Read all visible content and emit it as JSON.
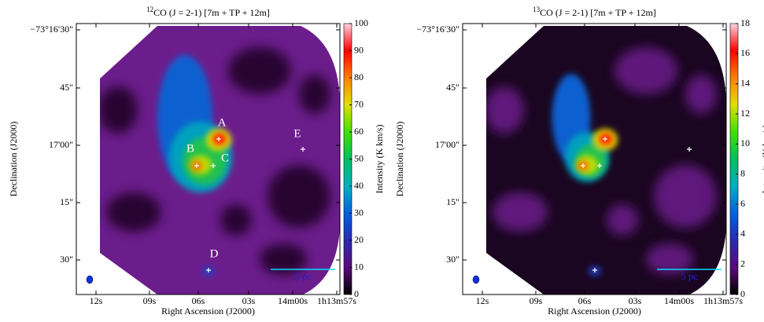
{
  "chart_data": [
    {
      "type": "map",
      "isotope": "12",
      "title": "CO (J = 2-1) [7m + TP + 12m]",
      "x_label": "Right Ascension (J2000)",
      "y_label": "Declination (J2000)",
      "xtick_labels": [
        "12s",
        "09s",
        "06s",
        "03s",
        "14m00s",
        "1h13m57s"
      ],
      "ytick_labels": [
        "−73°16'30\"",
        "45\"",
        "17'00\"",
        "15\"",
        "30\""
      ],
      "colorbar_label": "Intensity (K km/s)",
      "clim": [
        0,
        100
      ],
      "cticks": [
        0,
        10,
        20,
        30,
        40,
        50,
        60,
        70,
        80,
        90,
        100
      ],
      "annotations": [
        "A",
        "B",
        "C",
        "D",
        "E"
      ],
      "scale_bar": "5 pc"
    },
    {
      "type": "map",
      "isotope": "13",
      "title": "CO (J = 2-1) [7m + TP + 12m]",
      "x_label": "Right Ascension (J2000)",
      "y_label": "Declination (J2000)",
      "xtick_labels": [
        "12s",
        "09s",
        "06s",
        "03s",
        "14m00s",
        "1h13m57s"
      ],
      "ytick_labels": [
        "−73°16'30\"",
        "45\"",
        "17'00\"",
        "15\"",
        "30\""
      ],
      "colorbar_label": "Intensity (K km/s)",
      "clim": [
        0,
        18
      ],
      "cticks": [
        0,
        2,
        4,
        6,
        8,
        10,
        12,
        14,
        16,
        18
      ],
      "scale_bar": "5 pc"
    }
  ]
}
